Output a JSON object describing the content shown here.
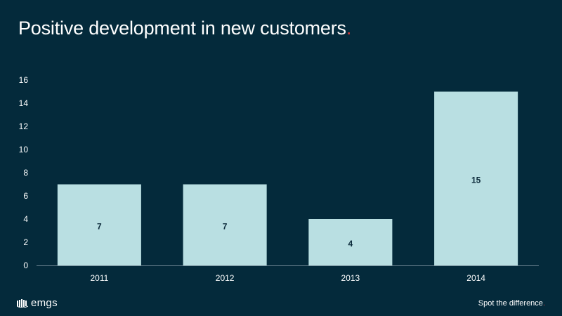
{
  "header": {
    "title": "Positive development in new customers",
    "title_dot": "."
  },
  "footer": {
    "logo_text": "emgs",
    "logo_icon": "emgs-logo-mark",
    "tagline": "Spot the difference",
    "tagline_dot": "."
  },
  "colors": {
    "background": "#042a3b",
    "bar": "#b9dfe2",
    "accent": "#d23a3a",
    "data_label": "#0b2a3a"
  },
  "chart_data": {
    "type": "bar",
    "title": "Positive development in new customers",
    "xlabel": "",
    "ylabel": "",
    "categories": [
      "2011",
      "2012",
      "2013",
      "2014"
    ],
    "values": [
      7,
      7,
      4,
      15
    ],
    "data_labels": [
      "7",
      "7",
      "4",
      "15"
    ],
    "ylim": [
      0,
      16
    ],
    "yticks": [
      0,
      2,
      4,
      6,
      8,
      10,
      12,
      14,
      16
    ],
    "ytick_labels": [
      "0",
      "2",
      "4",
      "6",
      "8",
      "10",
      "12",
      "14",
      "16"
    ],
    "grid": false,
    "legend": "none"
  }
}
